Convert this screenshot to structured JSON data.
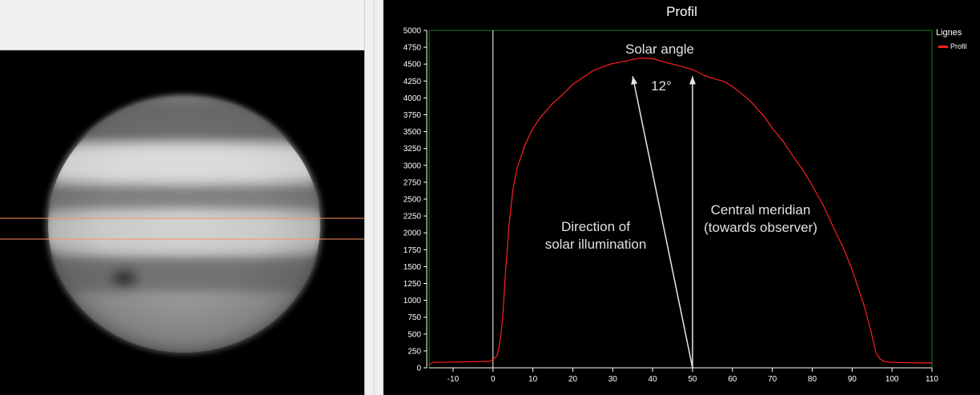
{
  "chart_data": {
    "type": "line",
    "title": "Profil",
    "xlabel": "",
    "ylabel": "",
    "xlim": [
      -16,
      110
    ],
    "ylim": [
      0,
      5000
    ],
    "xticks": [
      -10,
      0,
      10,
      20,
      30,
      40,
      50,
      60,
      70,
      80,
      90,
      100,
      110
    ],
    "yticks": [
      0,
      250,
      500,
      750,
      1000,
      1250,
      1500,
      1750,
      2000,
      2250,
      2500,
      2750,
      3000,
      3250,
      3500,
      3750,
      4000,
      4250,
      4500,
      4750,
      5000
    ],
    "legend": {
      "title": "Lignes",
      "position": "top-right"
    },
    "series": [
      {
        "name": "Profil",
        "color": "#ff2020",
        "x": [
          -16,
          -15,
          -10,
          -5,
          -1,
          0,
          1,
          1.5,
          2,
          2.5,
          3,
          4,
          5,
          6,
          8,
          10,
          12,
          15,
          18,
          20,
          22,
          25,
          28,
          30,
          32,
          35,
          37,
          40,
          43,
          45,
          47,
          50,
          53,
          55,
          58,
          60,
          63,
          65,
          68,
          70,
          73,
          75,
          78,
          80,
          83,
          85,
          88,
          90,
          92,
          93,
          94,
          95,
          96,
          97,
          98,
          99,
          100,
          105,
          110
        ],
        "y": [
          50,
          80,
          85,
          90,
          95,
          120,
          180,
          300,
          500,
          800,
          1300,
          2100,
          2650,
          2950,
          3300,
          3550,
          3720,
          3920,
          4080,
          4200,
          4280,
          4400,
          4470,
          4510,
          4530,
          4570,
          4590,
          4580,
          4530,
          4500,
          4470,
          4420,
          4330,
          4290,
          4240,
          4170,
          4030,
          3920,
          3720,
          3550,
          3330,
          3150,
          2900,
          2700,
          2380,
          2120,
          1750,
          1450,
          1100,
          920,
          700,
          470,
          220,
          130,
          95,
          85,
          80,
          75,
          70
        ]
      }
    ],
    "annotations": {
      "solar_angle": "Solar angle",
      "angle_value": "12°",
      "direction_line1": "Direction of",
      "direction_line2": "solar illumination",
      "meridian_line1": "Central meridian",
      "meridian_line2": "(towards observer)"
    },
    "vertical_marker_x": 0,
    "arrows": [
      {
        "label": "Direction of solar illumination",
        "from": [
          50,
          0
        ],
        "to": [
          35,
          4320
        ]
      },
      {
        "label": "Central meridian",
        "from": [
          50,
          0
        ],
        "to": [
          50,
          4320
        ]
      }
    ]
  },
  "colors": {
    "profile": "#ff2020",
    "frame": "#1a7a1a",
    "axes": "#ffffff",
    "marker_lines": "#ff9060"
  }
}
